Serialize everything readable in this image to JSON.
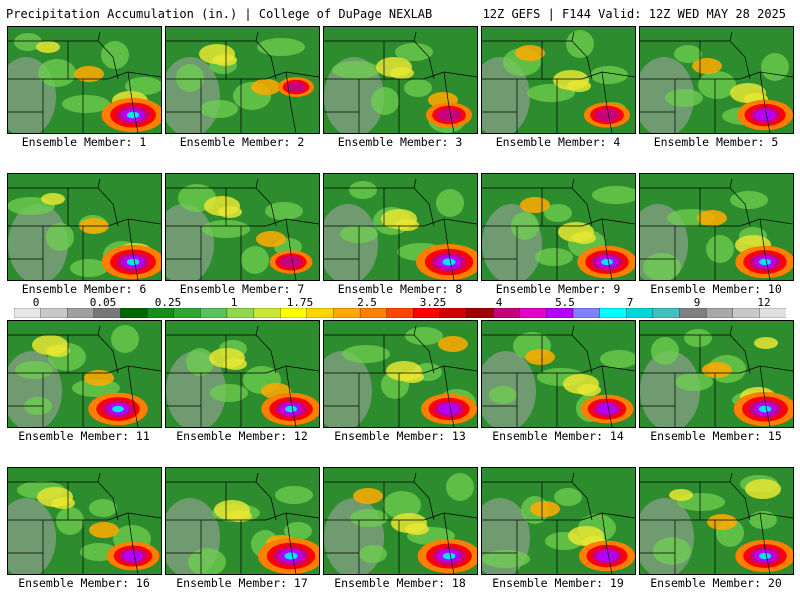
{
  "header": {
    "left_title": "Precipitation Accumulation (in.) | College of DuPage NEXLAB",
    "right_title": "12Z GEFS | F144 Valid: 12Z WED MAY 28 2025"
  },
  "members": [
    {
      "label": "Ensemble Member: 1",
      "max_region": "se",
      "intensity": 0.95
    },
    {
      "label": "Ensemble Member: 2",
      "max_region": "e",
      "intensity": 0.55
    },
    {
      "label": "Ensemble Member: 3",
      "max_region": "se",
      "intensity": 0.7
    },
    {
      "label": "Ensemble Member: 4",
      "max_region": "se",
      "intensity": 0.7
    },
    {
      "label": "Ensemble Member: 5",
      "max_region": "se",
      "intensity": 0.85
    },
    {
      "label": "Ensemble Member: 6",
      "max_region": "se",
      "intensity": 0.95
    },
    {
      "label": "Ensemble Member: 7",
      "max_region": "se",
      "intensity": 0.65
    },
    {
      "label": "Ensemble Member: 8",
      "max_region": "se",
      "intensity": 1.0
    },
    {
      "label": "Ensemble Member: 9",
      "max_region": "se",
      "intensity": 0.9
    },
    {
      "label": "Ensemble Member: 10",
      "max_region": "se",
      "intensity": 0.9
    },
    {
      "label": "Ensemble Member: 11",
      "max_region": "s",
      "intensity": 0.9
    },
    {
      "label": "Ensemble Member: 12",
      "max_region": "se",
      "intensity": 0.9
    },
    {
      "label": "Ensemble Member: 13",
      "max_region": "se",
      "intensity": 0.85
    },
    {
      "label": "Ensemble Member: 14",
      "max_region": "se",
      "intensity": 0.8
    },
    {
      "label": "Ensemble Member: 15",
      "max_region": "se",
      "intensity": 0.95
    },
    {
      "label": "Ensemble Member: 16",
      "max_region": "se",
      "intensity": 0.8
    },
    {
      "label": "Ensemble Member: 17",
      "max_region": "se",
      "intensity": 1.0
    },
    {
      "label": "Ensemble Member: 18",
      "max_region": "se",
      "intensity": 0.95
    },
    {
      "label": "Ensemble Member: 19",
      "max_region": "se",
      "intensity": 0.85
    },
    {
      "label": "Ensemble Member: 20",
      "max_region": "se",
      "intensity": 0.9
    }
  ],
  "colorbar": {
    "labels": [
      "0",
      "0.05",
      "0.25",
      "1",
      "1.75",
      "2.5",
      "3.25",
      "4",
      "5.5",
      "7",
      "9",
      "12"
    ],
    "colors": [
      "#e6e6e6",
      "#c8c8c8",
      "#a0a0a0",
      "#787878",
      "#006400",
      "#1a8c1a",
      "#33a533",
      "#5cc15c",
      "#8fd94f",
      "#c8e632",
      "#ffff00",
      "#ffd700",
      "#ffaa00",
      "#ff7f00",
      "#ff4500",
      "#ff0000",
      "#d40000",
      "#a00000",
      "#c8007a",
      "#e600c8",
      "#b400ff",
      "#8080ff",
      "#00ffff",
      "#00d8d8",
      "#40c0c0",
      "#808080",
      "#a8a8a8",
      "#c8c8c8",
      "#e0e0e0"
    ]
  }
}
